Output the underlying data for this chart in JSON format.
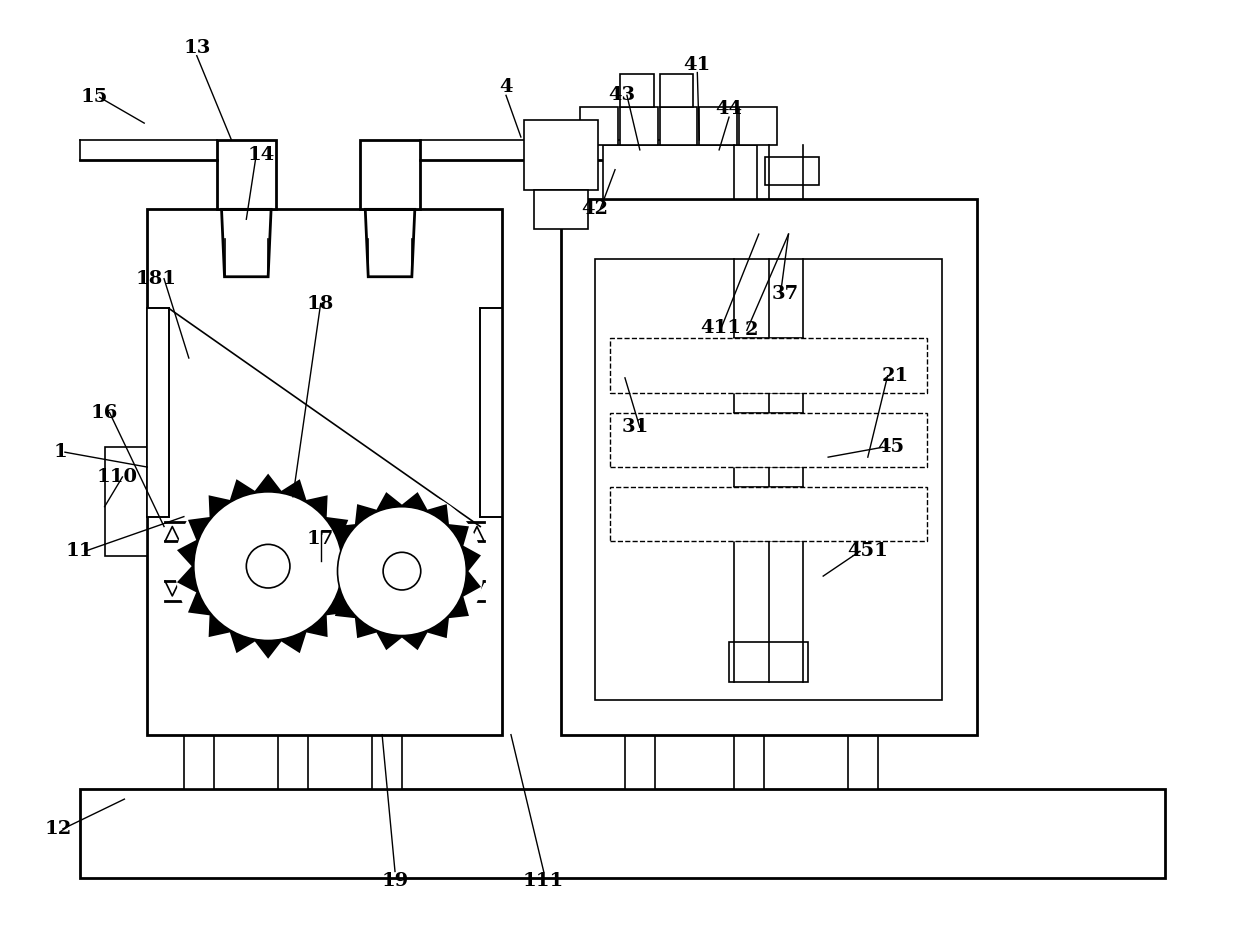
{
  "bg": "#ffffff",
  "lc": "#000000",
  "lw": 2.0,
  "lt": 1.2
}
